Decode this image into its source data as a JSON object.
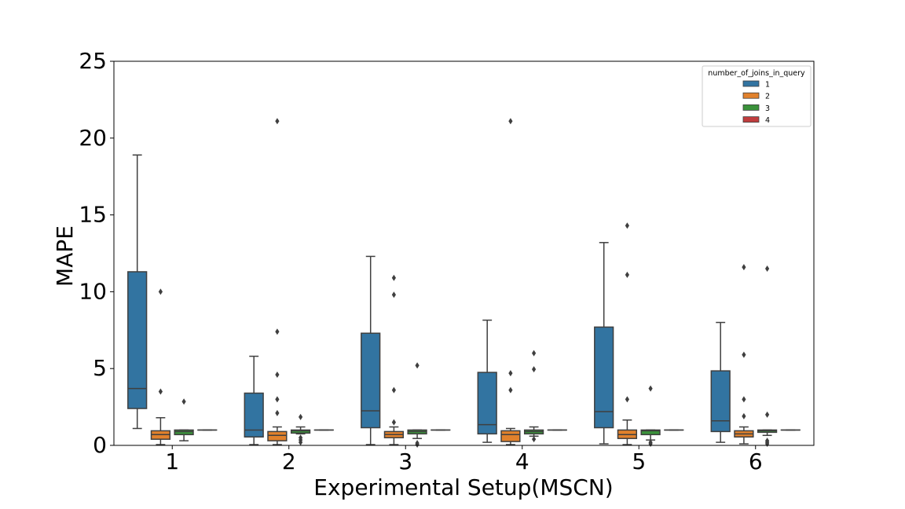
{
  "chart_data": {
    "type": "box",
    "xlabel": "Experimental Setup(MSCN)",
    "ylabel": "MAPE",
    "ylim": [
      0,
      25
    ],
    "yticks": [
      0,
      5,
      10,
      15,
      20,
      25
    ],
    "categories": [
      "1",
      "2",
      "3",
      "4",
      "5",
      "6"
    ],
    "legend": {
      "title": "number_of_joins_in_query",
      "placement": "top-right",
      "entries": [
        "1",
        "2",
        "3",
        "4"
      ]
    },
    "colors": {
      "1": "#3274a1",
      "2": "#e1812c",
      "3": "#3a923a",
      "4": "#c03d3e"
    },
    "series": [
      {
        "name": "1",
        "boxes": [
          {
            "whislo": 1.1,
            "q1": 2.4,
            "med": 3.7,
            "q3": 11.3,
            "whishi": 18.9,
            "fliers": []
          },
          {
            "whislo": 0.05,
            "q1": 0.55,
            "med": 1.0,
            "q3": 3.4,
            "whishi": 5.8,
            "fliers": []
          },
          {
            "whislo": 0.05,
            "q1": 1.15,
            "med": 2.25,
            "q3": 7.3,
            "whishi": 12.3,
            "fliers": []
          },
          {
            "whislo": 0.2,
            "q1": 0.75,
            "med": 1.35,
            "q3": 4.75,
            "whishi": 8.15,
            "fliers": []
          },
          {
            "whislo": 0.1,
            "q1": 1.15,
            "med": 2.2,
            "q3": 7.7,
            "whishi": 13.2,
            "fliers": []
          },
          {
            "whislo": 0.2,
            "q1": 0.9,
            "med": 1.6,
            "q3": 4.85,
            "whishi": 8.0,
            "fliers": []
          }
        ]
      },
      {
        "name": "2",
        "boxes": [
          {
            "whislo": 0.05,
            "q1": 0.4,
            "med": 0.7,
            "q3": 0.95,
            "whishi": 1.8,
            "fliers": [
              3.5,
              10.0
            ]
          },
          {
            "whislo": 0.05,
            "q1": 0.3,
            "med": 0.65,
            "q3": 0.9,
            "whishi": 1.2,
            "fliers": [
              2.1,
              3.0,
              4.6,
              7.4,
              21.1
            ]
          },
          {
            "whislo": 0.05,
            "q1": 0.5,
            "med": 0.7,
            "q3": 0.9,
            "whishi": 1.2,
            "fliers": [
              1.5,
              3.6,
              9.8,
              10.9
            ]
          },
          {
            "whislo": 0.05,
            "q1": 0.25,
            "med": 0.7,
            "q3": 0.95,
            "whishi": 1.1,
            "fliers": [
              3.6,
              4.7,
              21.1
            ]
          },
          {
            "whislo": 0.05,
            "q1": 0.45,
            "med": 0.7,
            "q3": 1.0,
            "whishi": 1.65,
            "fliers": [
              3.0,
              11.1,
              14.3
            ]
          },
          {
            "whislo": 0.1,
            "q1": 0.55,
            "med": 0.75,
            "q3": 0.95,
            "whishi": 1.2,
            "fliers": [
              1.9,
              3.0,
              5.9,
              11.6
            ]
          }
        ]
      },
      {
        "name": "3",
        "boxes": [
          {
            "whislo": 0.3,
            "q1": 0.7,
            "med": 0.9,
            "q3": 1.0,
            "whishi": 1.0,
            "fliers": [
              2.85
            ]
          },
          {
            "whislo": 0.75,
            "q1": 0.8,
            "med": 0.95,
            "q3": 1.0,
            "whishi": 1.2,
            "fliers": [
              0.2,
              0.35,
              0.5,
              1.85
            ]
          },
          {
            "whislo": 0.45,
            "q1": 0.75,
            "med": 0.9,
            "q3": 1.0,
            "whishi": 1.0,
            "fliers": [
              0.05,
              0.15,
              5.2
            ]
          },
          {
            "whislo": 0.6,
            "q1": 0.75,
            "med": 0.9,
            "q3": 1.0,
            "whishi": 1.2,
            "fliers": [
              0.4,
              4.95,
              6.0
            ]
          },
          {
            "whislo": 0.35,
            "q1": 0.7,
            "med": 0.95,
            "q3": 1.0,
            "whishi": 1.0,
            "fliers": [
              0.1,
              0.2,
              3.7
            ]
          },
          {
            "whislo": 0.65,
            "q1": 0.85,
            "med": 0.95,
            "q3": 1.0,
            "whishi": 1.0,
            "fliers": [
              0.1,
              0.2,
              0.3,
              2.0,
              11.5
            ]
          }
        ]
      },
      {
        "name": "4",
        "boxes": [
          {
            "whislo": 1.0,
            "q1": 1.0,
            "med": 1.0,
            "q3": 1.0,
            "whishi": 1.0,
            "fliers": []
          },
          {
            "whislo": 1.0,
            "q1": 1.0,
            "med": 1.0,
            "q3": 1.0,
            "whishi": 1.0,
            "fliers": []
          },
          {
            "whislo": 1.0,
            "q1": 1.0,
            "med": 1.0,
            "q3": 1.0,
            "whishi": 1.0,
            "fliers": []
          },
          {
            "whislo": 1.0,
            "q1": 1.0,
            "med": 1.0,
            "q3": 1.0,
            "whishi": 1.0,
            "fliers": []
          },
          {
            "whislo": 1.0,
            "q1": 1.0,
            "med": 1.0,
            "q3": 1.0,
            "whishi": 1.0,
            "fliers": []
          },
          {
            "whislo": 1.0,
            "q1": 1.0,
            "med": 1.0,
            "q3": 1.0,
            "whishi": 1.0,
            "fliers": []
          }
        ]
      }
    ]
  }
}
